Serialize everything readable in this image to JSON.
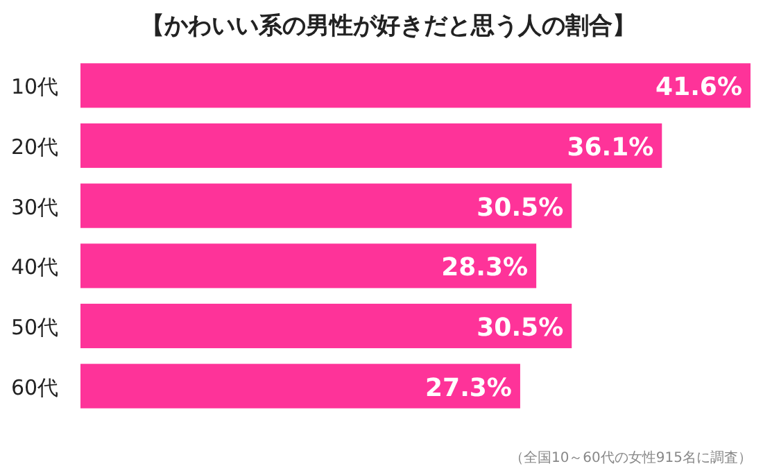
{
  "chart_data": {
    "type": "bar",
    "orientation": "horizontal",
    "title": "【かわいい系の男性が好きだと思う人の割合】",
    "categories": [
      "10代",
      "20代",
      "30代",
      "40代",
      "50代",
      "60代"
    ],
    "values": [
      41.6,
      36.1,
      30.5,
      28.3,
      30.5,
      27.3
    ],
    "value_labels": [
      "41.6%",
      "36.1%",
      "30.5%",
      "28.3%",
      "30.5%",
      "27.3%"
    ],
    "color": "#fe3399",
    "annotations": [
      "（全国10～60代の女性915名に調査）"
    ]
  }
}
